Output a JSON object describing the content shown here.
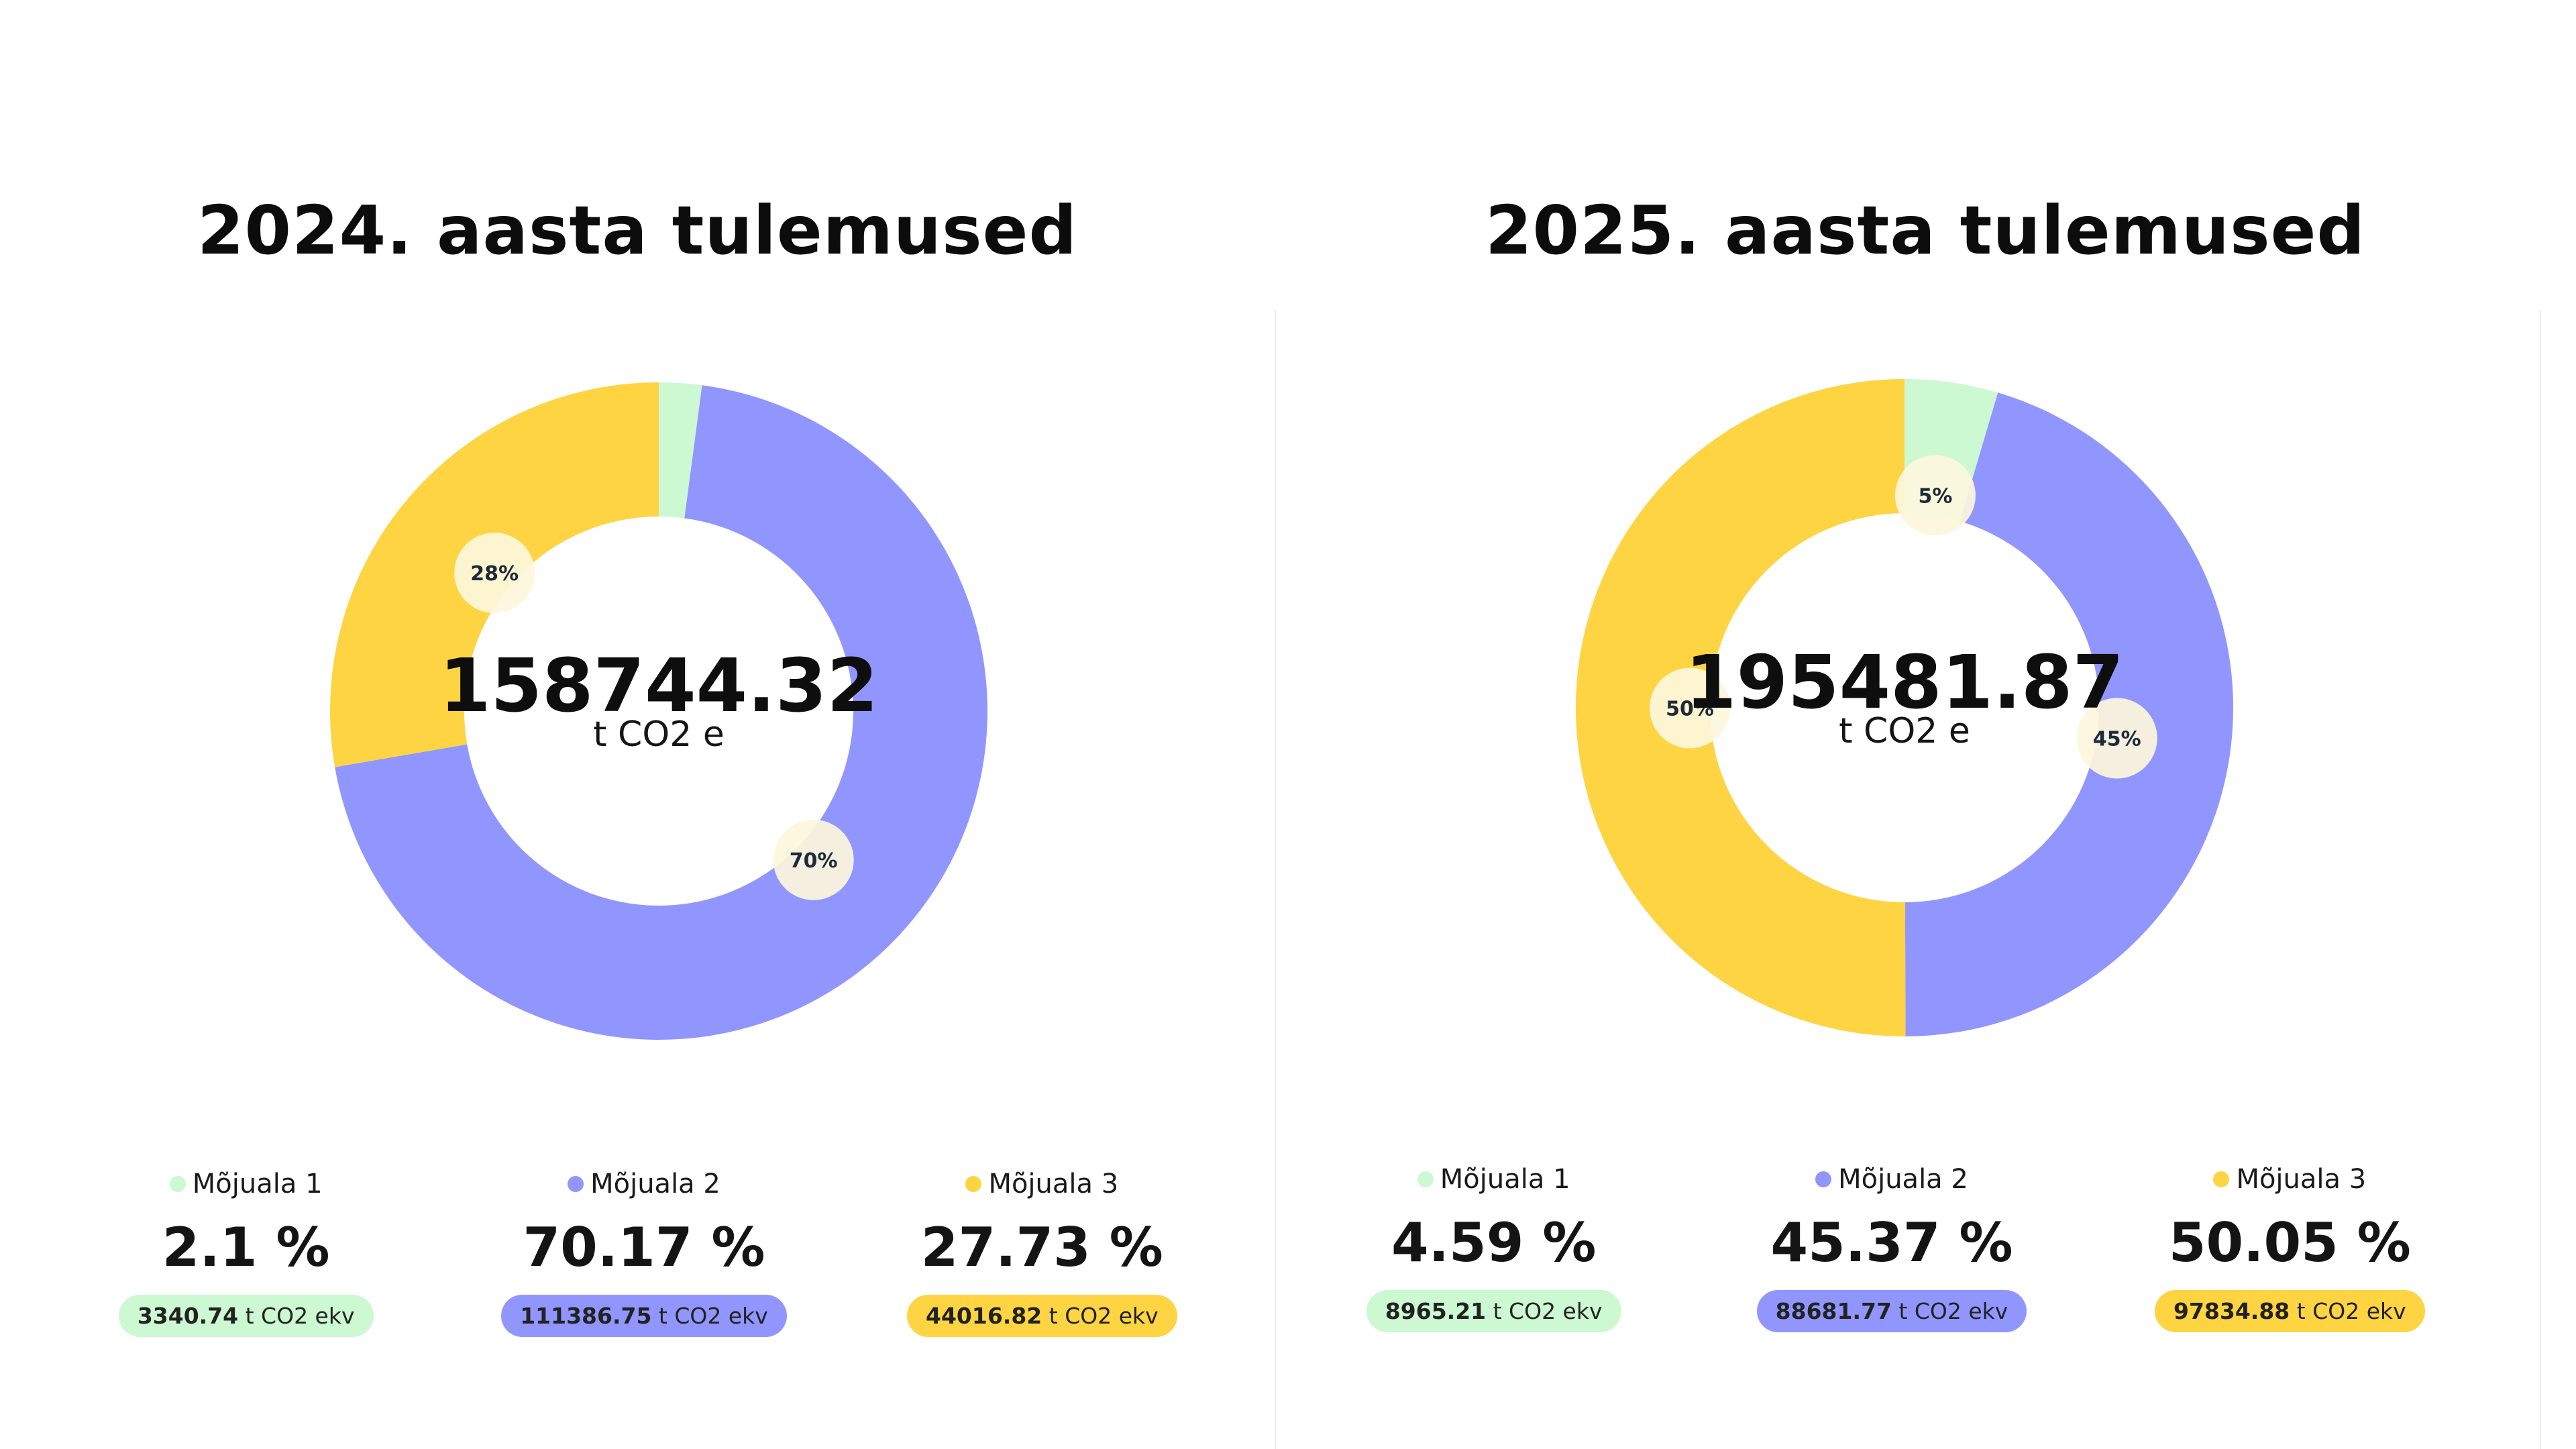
{
  "colors": {
    "scope1": "#ccf8d2",
    "scope2": "#9196fe",
    "scope3": "#fed443",
    "badge": "#fdf6dc"
  },
  "chart_data": [
    {
      "type": "pie",
      "title": "2024. aasta tulemused",
      "total": "158744.32",
      "unit": "t CO2 e",
      "slices": [
        {
          "name": "Mõjuala 1",
          "value": 3340.74,
          "percent_label": "2.1 %",
          "badge": "",
          "amount": "3340.74",
          "amount_unit": "t CO2 ekv"
        },
        {
          "name": "Mõjuala 2",
          "value": 111386.75,
          "percent_label": "70.17 %",
          "badge": "70%",
          "amount": "111386.75",
          "amount_unit": "t CO2 ekv"
        },
        {
          "name": "Mõjuala 3",
          "value": 44016.82,
          "percent_label": "27.73 %",
          "badge": "28%",
          "amount": "44016.82",
          "amount_unit": "t CO2 ekv"
        }
      ]
    },
    {
      "type": "pie",
      "title": "2025. aasta tulemused",
      "total": "195481.87",
      "unit": "t CO2 e",
      "slices": [
        {
          "name": "Mõjuala 1",
          "value": 8965.21,
          "percent_label": "4.59 %",
          "badge": "5%",
          "amount": "8965.21",
          "amount_unit": "t CO2 ekv"
        },
        {
          "name": "Mõjuala 2",
          "value": 88681.77,
          "percent_label": "45.37 %",
          "badge": "45%",
          "amount": "88681.77",
          "amount_unit": "t CO2 ekv"
        },
        {
          "name": "Mõjuala 3",
          "value": 97834.88,
          "percent_label": "50.05 %",
          "badge": "50%",
          "amount": "97834.88",
          "amount_unit": "t CO2 ekv"
        }
      ]
    }
  ]
}
